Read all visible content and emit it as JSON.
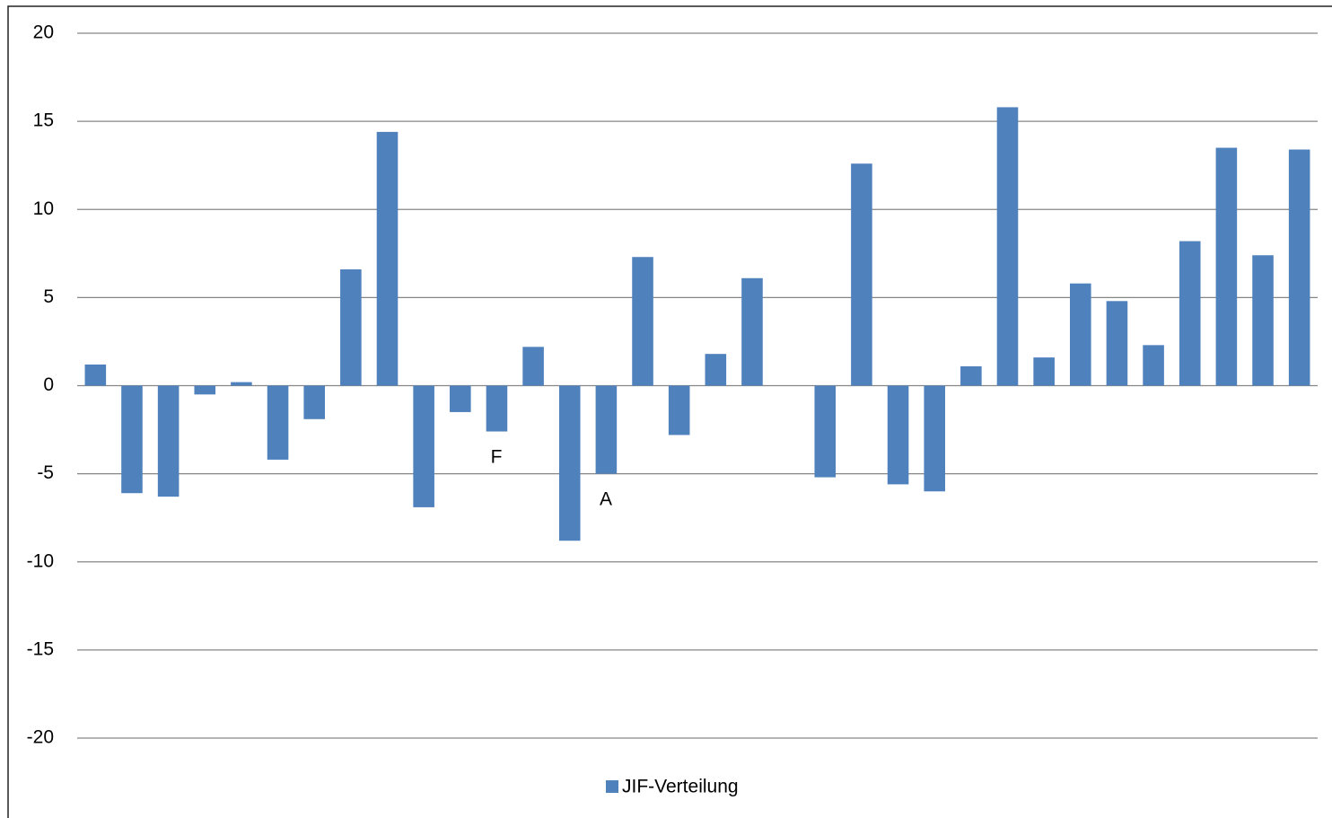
{
  "chart_data": {
    "type": "bar",
    "categories": [
      null,
      null,
      null,
      null,
      null,
      null,
      null,
      null,
      null,
      null,
      null,
      null,
      null,
      null,
      null,
      null,
      null,
      null,
      null,
      null,
      null,
      null,
      null,
      null,
      null,
      null,
      null,
      null,
      null,
      null,
      null,
      null,
      null,
      null
    ],
    "series": [
      {
        "name": "JIF-Verteilung",
        "color": "#4f81bd",
        "values": [
          1.2,
          -6.1,
          -6.3,
          -0.5,
          0.2,
          -4.2,
          -1.9,
          6.6,
          14.4,
          -6.9,
          -1.5,
          -2.6,
          2.2,
          -8.8,
          -5.0,
          7.3,
          -2.8,
          1.8,
          6.1,
          null,
          -5.2,
          12.6,
          -5.6,
          -6.0,
          1.1,
          15.8,
          1.6,
          5.8,
          4.8,
          2.3,
          8.2,
          13.5,
          7.4,
          13.4
        ]
      }
    ],
    "annotations": [
      "F",
      "A"
    ],
    "ylim": [
      -20,
      20
    ],
    "yticks": [
      -20,
      -15,
      -10,
      -5,
      0,
      5,
      10,
      15,
      20
    ],
    "grid": true,
    "legend": "bottom"
  }
}
